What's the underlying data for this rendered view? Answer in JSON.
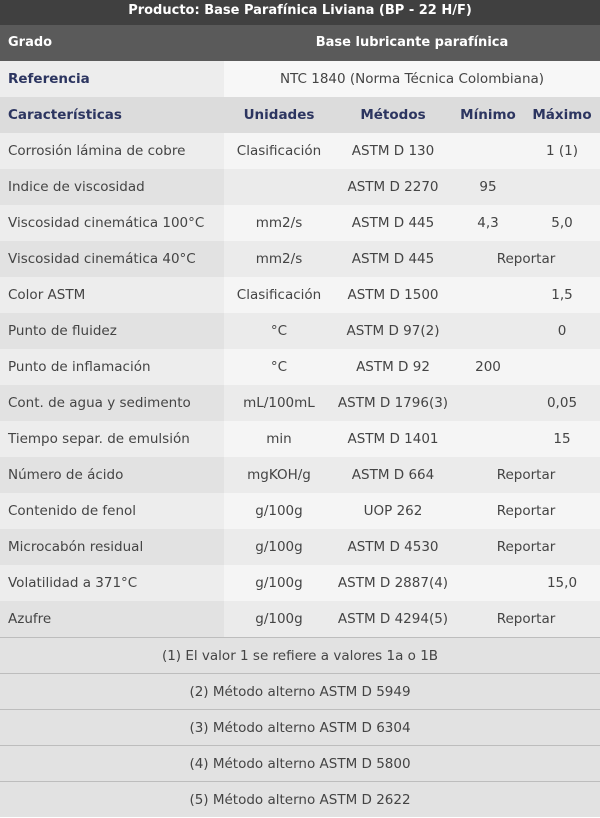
{
  "title": "Producto: Base Parafínica Liviana (BP - 22 H/F)",
  "grado": {
    "label": "Grado",
    "value": "Base lubricante parafínica"
  },
  "referencia": {
    "label": "Referencia",
    "value": "NTC 1840 (Norma Técnica Colombiana)"
  },
  "columns": [
    "Características",
    "Unidades",
    "Métodos",
    "Mínimo",
    "Máximo"
  ],
  "rows": [
    {
      "name": "Corrosión lámina de cobre",
      "unidad": "Clasificación",
      "metodo": "ASTM D 130",
      "min": "",
      "max": "1 (1)",
      "span": ""
    },
    {
      "name": "Indice de viscosidad",
      "unidad": "",
      "metodo": "ASTM D 2270",
      "min": "95",
      "max": "",
      "span": ""
    },
    {
      "name": "Viscosidad cinemática 100°C",
      "unidad": "mm2/s",
      "metodo": "ASTM D 445",
      "min": "4,3",
      "max": "5,0",
      "span": ""
    },
    {
      "name": "Viscosidad cinemática 40°C",
      "unidad": "mm2/s",
      "metodo": "ASTM D 445",
      "min": "",
      "max": "",
      "span": "Reportar"
    },
    {
      "name": "Color ASTM",
      "unidad": "Clasificación",
      "metodo": "ASTM D 1500",
      "min": "",
      "max": "1,5",
      "span": ""
    },
    {
      "name": "Punto de fluidez",
      "unidad": "°C",
      "metodo": "ASTM D 97(2)",
      "min": "",
      "max": "0",
      "span": ""
    },
    {
      "name": "Punto de inflamación",
      "unidad": "°C",
      "metodo": "ASTM D 92",
      "min": "200",
      "max": "",
      "span": ""
    },
    {
      "name": "Cont. de agua y sedimento",
      "unidad": "mL/100mL",
      "metodo": "ASTM D 1796(3)",
      "min": "",
      "max": "0,05",
      "span": ""
    },
    {
      "name": "Tiempo separ. de emulsión",
      "unidad": "min",
      "metodo": "ASTM D 1401",
      "min": "",
      "max": "15",
      "span": ""
    },
    {
      "name": "Número de ácido",
      "unidad": "mgKOH/g",
      "metodo": "ASTM D 664",
      "min": "",
      "max": "",
      "span": "Reportar"
    },
    {
      "name": "Contenido de fenol",
      "unidad": "g/100g",
      "metodo": "UOP 262",
      "min": "",
      "max": "",
      "span": "Reportar"
    },
    {
      "name": "Microcabón residual",
      "unidad": "g/100g",
      "metodo": "ASTM D 4530",
      "min": "",
      "max": "",
      "span": "Reportar"
    },
    {
      "name": "Volatilidad a 371°C",
      "unidad": "g/100g",
      "metodo": "ASTM D 2887(4)",
      "min": "",
      "max": "15,0",
      "span": ""
    },
    {
      "name": "Azufre",
      "unidad": "g/100g",
      "metodo": "ASTM D 4294(5)",
      "min": "",
      "max": "",
      "span": "Reportar"
    }
  ],
  "notes": [
    "(1) El valor 1 se refiere a valores 1a o 1B",
    "(2) Método alterno ASTM D 5949",
    "(3) Método alterno ASTM D 6304",
    "(4) Método alterno ASTM D 5800",
    "(5) Método alterno ASTM D 2622"
  ]
}
